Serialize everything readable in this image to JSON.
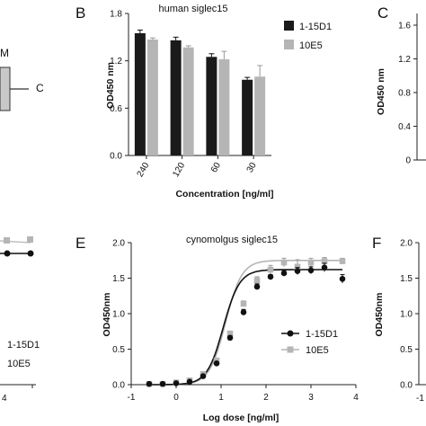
{
  "panel_labels": {
    "b": "B",
    "c": "C",
    "e": "E",
    "f": "F"
  },
  "diagram_labels": {
    "m": "M",
    "c": "C"
  },
  "partial_left_legend": [
    "1-15D1",
    "10E5"
  ],
  "partial_left_tick": "4",
  "partial_c": {
    "ylabel": "OD450 nm",
    "yticks": [
      "0",
      "0.4",
      "0.8",
      "1.2",
      "1.6"
    ]
  },
  "partial_f": {
    "ylabel": "OD450nm",
    "yticks": [
      "0.0",
      "0.5",
      "1.0",
      "1.5",
      "2.0"
    ],
    "xtick": "-1"
  },
  "colors": {
    "series_1": "#1a1a1a",
    "series_2": "#b5b5b5"
  },
  "chart_data": [
    {
      "type": "bar",
      "panel": "B",
      "title": "human siglec15",
      "xlabel": "Concentration [ng/ml]",
      "ylabel": "OD450 nm",
      "categories": [
        "240",
        "120",
        "60",
        "30"
      ],
      "ylim": [
        0,
        1.8
      ],
      "yticks": [
        "0.0",
        "0.6",
        "1.2",
        "1.8"
      ],
      "legend_position": "top-right",
      "series": [
        {
          "name": "1-15D1",
          "values": [
            1.55,
            1.46,
            1.25,
            0.96
          ],
          "errors": [
            0.04,
            0.04,
            0.04,
            0.03
          ]
        },
        {
          "name": "10E5",
          "values": [
            1.47,
            1.37,
            1.22,
            1.0
          ],
          "errors": [
            0.02,
            0.02,
            0.1,
            0.14
          ]
        }
      ]
    },
    {
      "type": "scatter",
      "panel": "E",
      "title": "cynomolgus siglec15",
      "xlabel": "Log dose [ng/ml]",
      "ylabel": "OD450nm",
      "xlim": [
        -1,
        4
      ],
      "ylim": [
        0,
        2.0
      ],
      "xticks": [
        "-1",
        "0",
        "1",
        "2",
        "3",
        "4"
      ],
      "yticks": [
        "0.0",
        "0.5",
        "1.0",
        "1.5",
        "2.0"
      ],
      "legend_position": "bottom-right",
      "series": [
        {
          "name": "1-15D1",
          "x": [
            -0.6,
            -0.3,
            0.0,
            0.3,
            0.6,
            0.9,
            1.2,
            1.5,
            1.8,
            2.1,
            2.4,
            2.7,
            3.0,
            3.3,
            3.7
          ],
          "y": [
            0.01,
            0.01,
            0.02,
            0.04,
            0.12,
            0.3,
            0.66,
            1.02,
            1.38,
            1.52,
            1.57,
            1.6,
            1.61,
            1.65,
            1.49
          ],
          "errors": [
            0,
            0,
            0,
            0,
            0,
            0.02,
            0.03,
            0.04,
            0.04,
            0.03,
            0.04,
            0.05,
            0.05,
            0.06,
            0.06
          ],
          "fit_top": 1.62,
          "fit_ec50": 1.05,
          "fit_hill": 1.2
        },
        {
          "name": "10E5",
          "x": [
            -0.6,
            -0.3,
            0.0,
            0.3,
            0.6,
            0.9,
            1.2,
            1.5,
            1.8,
            2.1,
            2.4,
            2.7,
            3.0,
            3.3,
            3.7
          ],
          "y": [
            0.01,
            0.01,
            0.03,
            0.06,
            0.15,
            0.34,
            0.72,
            1.14,
            1.47,
            1.62,
            1.72,
            1.66,
            1.72,
            1.74,
            1.74
          ],
          "errors": [
            0,
            0,
            0,
            0,
            0.02,
            0.02,
            0.03,
            0.04,
            0.05,
            0.06,
            0.06,
            0.1,
            0.06,
            0.05,
            0.04
          ],
          "fit_top": 1.75,
          "fit_ec50": 1.1,
          "fit_hill": 1.2
        }
      ]
    }
  ]
}
